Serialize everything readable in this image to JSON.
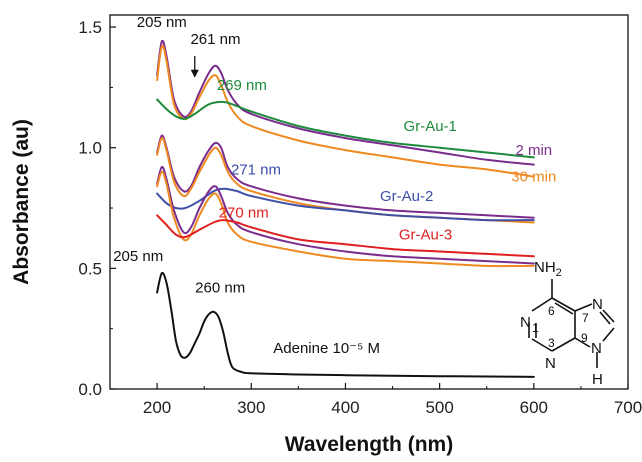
{
  "chart_data": {
    "type": "line",
    "xlabel": "Wavelength (nm)",
    "ylabel": "Absorbance (au)",
    "xlim": [
      150,
      700
    ],
    "ylim": [
      0.0,
      1.55
    ],
    "xticks": [
      200,
      300,
      400,
      500,
      600,
      700
    ],
    "yticks": [
      0.0,
      0.5,
      1.0,
      1.5
    ],
    "xtick_labels": [
      "200",
      "300",
      "400",
      "500",
      "600",
      "700"
    ],
    "ytick_labels": [
      "0.0",
      "0.5",
      "1.0",
      "1.5"
    ],
    "colors": {
      "black": "#111111",
      "orange": "#ef8a21",
      "purple": "#7b2d8e",
      "green": "#1e8a3c",
      "blue": "#3e4fa8",
      "red": "#e02020"
    },
    "series": [
      {
        "group": "Gr-Au-1",
        "color": "purple",
        "x": [
          200,
          205,
          210,
          218,
          228,
          236,
          245,
          255,
          262,
          268,
          275,
          285,
          300,
          350,
          400,
          450,
          500,
          550,
          600
        ],
        "y": [
          1.3,
          1.44,
          1.38,
          1.2,
          1.13,
          1.15,
          1.23,
          1.31,
          1.34,
          1.31,
          1.24,
          1.18,
          1.14,
          1.08,
          1.04,
          1.01,
          0.98,
          0.95,
          0.93
        ]
      },
      {
        "group": "Gr-Au-1",
        "color": "orange",
        "x": [
          200,
          205,
          210,
          218,
          228,
          236,
          245,
          255,
          262,
          268,
          275,
          285,
          300,
          350,
          400,
          450,
          500,
          550,
          600
        ],
        "y": [
          1.28,
          1.42,
          1.36,
          1.18,
          1.12,
          1.14,
          1.21,
          1.28,
          1.3,
          1.26,
          1.19,
          1.13,
          1.09,
          1.03,
          0.99,
          0.96,
          0.93,
          0.91,
          0.88
        ]
      },
      {
        "group": "Gr-Au-1",
        "color": "green",
        "x": [
          200,
          210,
          220,
          230,
          240,
          255,
          269,
          280,
          300,
          350,
          400,
          450,
          500,
          550,
          600
        ],
        "y": [
          1.2,
          1.16,
          1.13,
          1.12,
          1.14,
          1.18,
          1.19,
          1.18,
          1.15,
          1.09,
          1.05,
          1.02,
          1.0,
          0.98,
          0.96
        ]
      },
      {
        "group": "Gr-Au-2",
        "color": "purple",
        "x": [
          200,
          205,
          210,
          218,
          228,
          236,
          245,
          255,
          262,
          268,
          275,
          285,
          300,
          350,
          400,
          450,
          500,
          550,
          600
        ],
        "y": [
          0.98,
          1.05,
          1.0,
          0.88,
          0.82,
          0.84,
          0.92,
          0.99,
          1.02,
          1.0,
          0.92,
          0.87,
          0.84,
          0.79,
          0.76,
          0.74,
          0.73,
          0.72,
          0.71
        ]
      },
      {
        "group": "Gr-Au-2",
        "color": "orange",
        "x": [
          200,
          205,
          210,
          218,
          228,
          236,
          245,
          255,
          262,
          268,
          275,
          285,
          300,
          350,
          400,
          450,
          500,
          550,
          600
        ],
        "y": [
          0.97,
          1.04,
          0.99,
          0.86,
          0.8,
          0.83,
          0.9,
          0.97,
          1.0,
          0.97,
          0.9,
          0.85,
          0.82,
          0.77,
          0.74,
          0.72,
          0.71,
          0.7,
          0.69
        ]
      },
      {
        "group": "Gr-Au-2",
        "color": "blue",
        "x": [
          200,
          210,
          220,
          230,
          245,
          260,
          271,
          285,
          300,
          350,
          400,
          450,
          500,
          550,
          600
        ],
        "y": [
          0.81,
          0.77,
          0.75,
          0.75,
          0.78,
          0.82,
          0.83,
          0.82,
          0.8,
          0.76,
          0.74,
          0.72,
          0.71,
          0.7,
          0.7
        ]
      },
      {
        "group": "Gr-Au-3",
        "color": "purple",
        "x": [
          200,
          205,
          210,
          218,
          228,
          236,
          245,
          255,
          262,
          268,
          275,
          285,
          300,
          350,
          400,
          450,
          500,
          550,
          600
        ],
        "y": [
          0.85,
          0.92,
          0.87,
          0.74,
          0.65,
          0.67,
          0.75,
          0.82,
          0.84,
          0.8,
          0.73,
          0.68,
          0.65,
          0.6,
          0.57,
          0.55,
          0.54,
          0.53,
          0.52
        ]
      },
      {
        "group": "Gr-Au-3",
        "color": "orange",
        "x": [
          200,
          205,
          210,
          218,
          228,
          236,
          245,
          255,
          262,
          268,
          275,
          285,
          300,
          350,
          400,
          450,
          500,
          550,
          600
        ],
        "y": [
          0.84,
          0.9,
          0.85,
          0.71,
          0.62,
          0.64,
          0.72,
          0.79,
          0.81,
          0.77,
          0.69,
          0.64,
          0.61,
          0.57,
          0.54,
          0.53,
          0.52,
          0.51,
          0.51
        ]
      },
      {
        "group": "Gr-Au-3",
        "color": "red",
        "x": [
          200,
          210,
          220,
          230,
          245,
          260,
          270,
          285,
          300,
          350,
          400,
          450,
          500,
          550,
          600
        ],
        "y": [
          0.72,
          0.68,
          0.64,
          0.63,
          0.66,
          0.69,
          0.7,
          0.69,
          0.67,
          0.62,
          0.6,
          0.58,
          0.57,
          0.56,
          0.55
        ]
      },
      {
        "group": "Adenine",
        "color": "black",
        "x": [
          200,
          205,
          210,
          215,
          220,
          225,
          230,
          235,
          240,
          245,
          250,
          255,
          260,
          265,
          270,
          275,
          280,
          290,
          300,
          350,
          400,
          450,
          500,
          550,
          600
        ],
        "y": [
          0.4,
          0.48,
          0.44,
          0.33,
          0.2,
          0.14,
          0.13,
          0.15,
          0.19,
          0.23,
          0.28,
          0.31,
          0.32,
          0.3,
          0.24,
          0.15,
          0.09,
          0.07,
          0.065,
          0.06,
          0.057,
          0.055,
          0.053,
          0.052,
          0.05
        ]
      }
    ],
    "annotations": [
      {
        "text": "205 nm",
        "x": 205,
        "y": 1.5,
        "color": "black"
      },
      {
        "text": "261 nm",
        "x": 262,
        "y": 1.43,
        "color": "black"
      },
      {
        "text": "269 nm",
        "x": 290,
        "y": 1.24,
        "color": "green"
      },
      {
        "text": "Gr-Au-1",
        "x": 490,
        "y": 1.07,
        "color": "green"
      },
      {
        "text": "2 min",
        "x": 600,
        "y": 0.97,
        "color": "purple"
      },
      {
        "text": "30 min",
        "x": 600,
        "y": 0.86,
        "color": "orange"
      },
      {
        "text": "271 nm",
        "x": 305,
        "y": 0.89,
        "color": "blue"
      },
      {
        "text": "Gr-Au-2",
        "x": 465,
        "y": 0.78,
        "color": "blue"
      },
      {
        "text": "270 nm",
        "x": 292,
        "y": 0.71,
        "color": "red"
      },
      {
        "text": "Gr-Au-3",
        "x": 485,
        "y": 0.62,
        "color": "red"
      },
      {
        "text": "205 nm",
        "x": 180,
        "y": 0.53,
        "color": "black"
      },
      {
        "text": "260 nm",
        "x": 267,
        "y": 0.4,
        "color": "black"
      },
      {
        "text": "Adenine 10⁻⁵ M",
        "x": 380,
        "y": 0.15,
        "color": "black"
      }
    ],
    "arrow": {
      "x": 240,
      "y_from": 1.38,
      "y_to": 1.29,
      "color": "black"
    }
  },
  "molecule": {
    "name": "adenine",
    "nh2_main": "NH",
    "nh2_sub": "2",
    "atoms": [
      {
        "label": "N",
        "role": "N1"
      },
      {
        "label": "N",
        "role": "N3"
      },
      {
        "label": "N",
        "role": "N7"
      },
      {
        "label": "N",
        "role": "N9"
      },
      {
        "label": "H",
        "role": "H9"
      }
    ],
    "numbers": [
      "1",
      "3",
      "6",
      "7",
      "9"
    ]
  }
}
